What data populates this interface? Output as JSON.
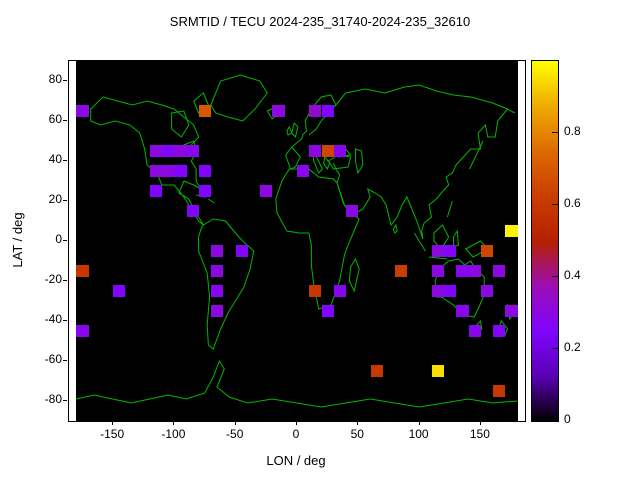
{
  "chart_data": {
    "type": "heatmap",
    "title": "SRMTID / TECU 2024-235_31740-2024-235_32610",
    "xlabel": "LON / deg",
    "ylabel": "LAT / deg",
    "x_range": [
      -186,
      186
    ],
    "y_range": [
      -90,
      90
    ],
    "map_extent": [
      -180,
      180,
      -90,
      90
    ],
    "x_ticks": [
      -150,
      -100,
      -50,
      0,
      50,
      100,
      150
    ],
    "y_ticks": [
      -80,
      -60,
      -40,
      -20,
      0,
      20,
      40,
      60,
      80
    ],
    "grid": false,
    "legend": "colorbar-right",
    "background_color": "#000000",
    "coastline_color": "#00b800",
    "cell_size_deg": [
      10,
      6
    ],
    "colorbar": {
      "range": [
        0,
        1
      ],
      "ticks": [
        0,
        0.2,
        0.4,
        0.6,
        0.8
      ]
    },
    "palette": {
      "name": "pm3d-black-purple-violet-orange-yellow",
      "stops": [
        [
          0,
          "#000000"
        ],
        [
          0.125,
          "#5a00b4"
        ],
        [
          0.25,
          "#8004ff"
        ],
        [
          0.375,
          "#9c0db4"
        ],
        [
          0.5,
          "#b52000"
        ],
        [
          0.625,
          "#ca3e00"
        ],
        [
          0.75,
          "#dd6b00"
        ],
        [
          0.875,
          "#efab00"
        ],
        [
          1,
          "#ffff00"
        ]
      ]
    },
    "cells": [
      [
        -175,
        65,
        0.3
      ],
      [
        -75,
        65,
        0.7
      ],
      [
        -15,
        65,
        0.3
      ],
      [
        15,
        65,
        0.33
      ],
      [
        25,
        65,
        0.25
      ],
      [
        -115,
        45,
        0.3
      ],
      [
        -105,
        45,
        0.26
      ],
      [
        -95,
        45,
        0.3
      ],
      [
        -85,
        45,
        0.28
      ],
      [
        -115,
        35,
        0.3
      ],
      [
        -105,
        35,
        0.3
      ],
      [
        -95,
        35,
        0.25
      ],
      [
        -75,
        35,
        0.26
      ],
      [
        -115,
        25,
        0.25
      ],
      [
        -75,
        25,
        0.25
      ],
      [
        -25,
        25,
        0.3
      ],
      [
        -85,
        15,
        0.26
      ],
      [
        5,
        35,
        0.28
      ],
      [
        15,
        45,
        0.3
      ],
      [
        25,
        45,
        0.65
      ],
      [
        35,
        45,
        0.28
      ],
      [
        45,
        15,
        0.3
      ],
      [
        175,
        5,
        0.98
      ],
      [
        -65,
        -5,
        0.3
      ],
      [
        -45,
        -5,
        0.26
      ],
      [
        -175,
        -15,
        0.6
      ],
      [
        85,
        -15,
        0.62
      ],
      [
        -145,
        -25,
        0.25
      ],
      [
        -65,
        -15,
        0.3
      ],
      [
        -65,
        -25,
        0.28
      ],
      [
        15,
        -25,
        0.6
      ],
      [
        35,
        -25,
        0.28
      ],
      [
        25,
        -35,
        0.25
      ],
      [
        -175,
        -45,
        0.28
      ],
      [
        -65,
        -35,
        0.3
      ],
      [
        115,
        -5,
        0.3
      ],
      [
        125,
        -5,
        0.26
      ],
      [
        155,
        -5,
        0.65
      ],
      [
        165,
        -15,
        0.3
      ],
      [
        115,
        -15,
        0.3
      ],
      [
        135,
        -15,
        0.28
      ],
      [
        145,
        -15,
        0.3
      ],
      [
        115,
        -25,
        0.3
      ],
      [
        125,
        -25,
        0.26
      ],
      [
        155,
        -25,
        0.3
      ],
      [
        135,
        -35,
        0.28
      ],
      [
        175,
        -35,
        0.3
      ],
      [
        165,
        -45,
        0.26
      ],
      [
        145,
        -45,
        0.28
      ],
      [
        65,
        -65,
        0.6
      ],
      [
        115,
        -65,
        0.95
      ],
      [
        165,
        -75,
        0.6
      ]
    ]
  }
}
